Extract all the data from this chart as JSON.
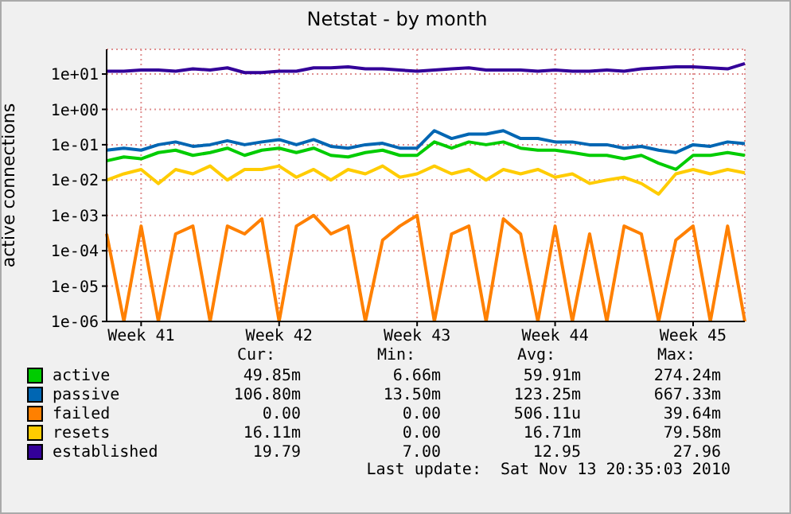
{
  "chart_data": {
    "type": "line",
    "title": "Netstat - by month",
    "ylabel": "active connections",
    "log": "y",
    "grid": true,
    "legend": "bottom",
    "marker": "none",
    "categories": [
      null,
      null,
      "Week 41",
      null,
      null,
      null,
      null,
      null,
      null,
      null,
      "Week 42",
      null,
      null,
      null,
      null,
      null,
      null,
      null,
      "Week 43",
      null,
      null,
      null,
      null,
      null,
      null,
      null,
      "Week 44",
      null,
      null,
      null,
      null,
      null,
      null,
      null,
      "Week 45",
      null,
      null,
      null
    ],
    "ylim": [
      1e-06,
      50
    ],
    "yticks": [
      {
        "value": 1e-06,
        "label": "1e-06"
      },
      {
        "value": 1e-05,
        "label": "1e-05"
      },
      {
        "value": 0.0001,
        "label": "1e-04"
      },
      {
        "value": 0.001,
        "label": "1e-03"
      },
      {
        "value": 0.01,
        "label": "1e-02"
      },
      {
        "value": 0.1,
        "label": "1e-01"
      },
      {
        "value": 1,
        "label": "1e+00"
      },
      {
        "value": 10,
        "label": "1e+01"
      }
    ],
    "series": [
      {
        "name": "active",
        "color": "#00cc00",
        "values": [
          0.035,
          0.045,
          0.04,
          0.06,
          0.07,
          0.05,
          0.06,
          0.08,
          0.05,
          0.07,
          0.08,
          0.06,
          0.08,
          0.05,
          0.045,
          0.06,
          0.07,
          0.05,
          0.05,
          0.12,
          0.08,
          0.12,
          0.1,
          0.12,
          0.08,
          0.07,
          0.07,
          0.06,
          0.05,
          0.05,
          0.04,
          0.05,
          0.03,
          0.02,
          0.05,
          0.05,
          0.06,
          0.05
        ]
      },
      {
        "name": "passive",
        "color": "#0066b3",
        "values": [
          0.07,
          0.08,
          0.07,
          0.1,
          0.12,
          0.09,
          0.1,
          0.13,
          0.1,
          0.12,
          0.14,
          0.1,
          0.14,
          0.09,
          0.08,
          0.1,
          0.11,
          0.08,
          0.08,
          0.25,
          0.15,
          0.2,
          0.2,
          0.25,
          0.15,
          0.15,
          0.12,
          0.12,
          0.1,
          0.1,
          0.08,
          0.09,
          0.07,
          0.06,
          0.1,
          0.09,
          0.12,
          0.107
        ]
      },
      {
        "name": "failed",
        "color": "#ff8000",
        "values": [
          0.0003,
          1e-06,
          0.0005,
          1e-06,
          0.0003,
          0.0005,
          1e-06,
          0.0005,
          0.0003,
          0.0008,
          1e-06,
          0.0005,
          0.001,
          0.0003,
          0.0005,
          1e-06,
          0.0002,
          0.0005,
          0.001,
          1e-06,
          0.0003,
          0.0005,
          1e-06,
          0.0008,
          0.0003,
          1e-06,
          0.0005,
          1e-06,
          0.0003,
          1e-06,
          0.0005,
          0.0003,
          1e-06,
          0.0002,
          0.0005,
          1e-06,
          0.0005,
          1e-06
        ]
      },
      {
        "name": "resets",
        "color": "#ffcc00",
        "values": [
          0.01,
          0.015,
          0.02,
          0.008,
          0.02,
          0.015,
          0.025,
          0.01,
          0.02,
          0.02,
          0.025,
          0.012,
          0.02,
          0.01,
          0.02,
          0.015,
          0.025,
          0.012,
          0.015,
          0.025,
          0.015,
          0.02,
          0.01,
          0.02,
          0.015,
          0.02,
          0.012,
          0.015,
          0.008,
          0.01,
          0.012,
          0.008,
          0.004,
          0.015,
          0.02,
          0.015,
          0.02,
          0.016
        ]
      },
      {
        "name": "established",
        "color": "#330099",
        "values": [
          12,
          12,
          13,
          13,
          12,
          14,
          13,
          15,
          11,
          11,
          12,
          12,
          15,
          15,
          16,
          14,
          14,
          13,
          12,
          13,
          14,
          15,
          13,
          13,
          13,
          12,
          13,
          12,
          12,
          13,
          12,
          14,
          15,
          16,
          16,
          15,
          14,
          19.8
        ]
      }
    ],
    "annotations": [
      "Cur:",
      "Min:",
      "Avg:",
      "Max:",
      "49.85m",
      "6.66m",
      "59.91m",
      "274.24m",
      "106.80m",
      "13.50m",
      "123.25m",
      "667.33m",
      "0.00",
      "0.00",
      "506.11u",
      "39.64m",
      "16.11m",
      "0.00",
      "16.71m",
      "79.58m",
      "19.79",
      "7.00",
      "12.95",
      "27.96",
      "Last update:  Sat Nov 13 20:35:03 2010"
    ]
  }
}
